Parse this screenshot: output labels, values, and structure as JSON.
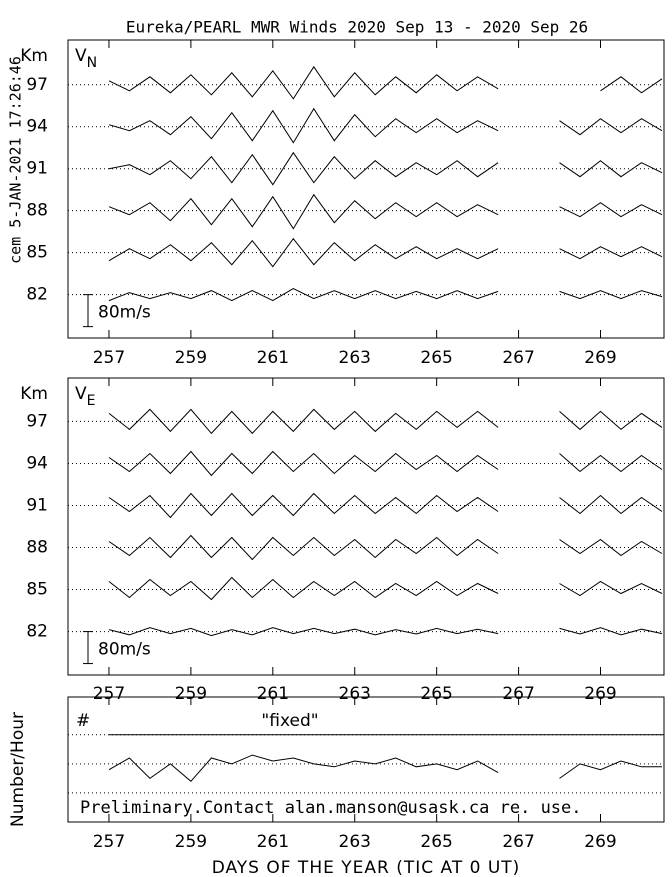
{
  "chart_data": [
    {
      "type": "line",
      "title": "Eureka/PEARL MWR Winds 2020 Sep 13 - 2020 Sep 26",
      "side_text": "cem 5-JAN-2021 17:26:46",
      "y_unit": "Km",
      "symbol": "V",
      "subscript": "N",
      "scale_bar": {
        "value": 80,
        "label": "80m/s"
      },
      "xlim": [
        256,
        270.55
      ],
      "xticks": [
        257,
        259,
        261,
        263,
        265,
        267,
        269
      ],
      "ylim": [
        78.9,
        100.2
      ],
      "yticks": [
        82,
        85,
        88,
        91,
        94,
        97
      ],
      "x": [
        257,
        257.5,
        258,
        258.5,
        259,
        259.5,
        260,
        260.5,
        261,
        261.5,
        262,
        262.5,
        263,
        263.5,
        264,
        264.5,
        265,
        265.5,
        266,
        266.5,
        267,
        267.5,
        268,
        268.5,
        269,
        269.5,
        270,
        270.5
      ],
      "series": [
        {
          "color": "#000000",
          "values": [
            -15,
            5,
            -10,
            5,
            -10,
            10,
            -15,
            10,
            -15,
            15,
            -10,
            10,
            -10,
            10,
            -10,
            8,
            -10,
            10,
            -10,
            8,
            null,
            null,
            8,
            -10,
            10,
            -10,
            10,
            -5
          ]
        },
        {
          "color": "#000000",
          "values": [
            -20,
            10,
            -15,
            20,
            -20,
            25,
            -30,
            30,
            -35,
            35,
            -30,
            25,
            -20,
            20,
            -15,
            15,
            -15,
            10,
            -15,
            10,
            null,
            null,
            10,
            -15,
            15,
            -10,
            15,
            -10
          ]
        },
        {
          "color": "#000000",
          "values": [
            10,
            -10,
            20,
            -25,
            30,
            -35,
            30,
            -40,
            35,
            -45,
            40,
            -30,
            25,
            -20,
            20,
            -15,
            20,
            -15,
            15,
            -10,
            null,
            null,
            10,
            -15,
            20,
            -15,
            15,
            -10
          ]
        },
        {
          "color": "#000000",
          "values": [
            0,
            10,
            -15,
            20,
            -25,
            30,
            -35,
            35,
            -40,
            40,
            -35,
            30,
            -25,
            20,
            -20,
            15,
            -15,
            20,
            -20,
            15,
            null,
            null,
            15,
            -20,
            20,
            -20,
            15,
            -10
          ]
        },
        {
          "color": "#000000",
          "values": [
            5,
            -10,
            15,
            -20,
            25,
            -30,
            35,
            -35,
            40,
            -40,
            45,
            -35,
            30,
            -25,
            20,
            -15,
            20,
            -15,
            15,
            -10,
            null,
            null,
            15,
            -20,
            20,
            -15,
            20,
            -10
          ]
        },
        {
          "color": "#000000",
          "values": [
            10,
            -15,
            20,
            -20,
            25,
            -25,
            30,
            -30,
            35,
            -35,
            45,
            -30,
            30,
            -25,
            20,
            -20,
            25,
            -15,
            20,
            -10,
            null,
            null,
            null,
            null,
            -15,
            20,
            -20,
            15
          ]
        }
      ]
    },
    {
      "type": "line",
      "y_unit": "Km",
      "symbol": "V",
      "subscript": "E",
      "scale_bar": {
        "value": 80,
        "label": "80m/s"
      },
      "xlim": [
        256,
        270.55
      ],
      "xticks": [
        257,
        259,
        261,
        263,
        265,
        267,
        269
      ],
      "ylim": [
        78.9,
        100.1
      ],
      "yticks": [
        82,
        85,
        88,
        91,
        94,
        97
      ],
      "x": [
        257,
        257.5,
        258,
        258.5,
        259,
        259.5,
        260,
        260.5,
        261,
        261.5,
        262,
        262.5,
        263,
        263.5,
        264,
        264.5,
        265,
        265.5,
        266,
        266.5,
        267,
        267.5,
        268,
        268.5,
        269,
        269.5,
        270,
        270.5
      ],
      "series": [
        {
          "color": "#000000",
          "values": [
            5,
            -8,
            10,
            -5,
            8,
            -10,
            5,
            -8,
            10,
            -5,
            8,
            -5,
            6,
            -8,
            5,
            -6,
            8,
            -5,
            6,
            -5,
            null,
            null,
            8,
            -6,
            10,
            -8,
            6,
            -5
          ]
        },
        {
          "color": "#000000",
          "values": [
            20,
            -20,
            25,
            -15,
            20,
            -25,
            30,
            -20,
            25,
            -20,
            20,
            -15,
            20,
            -20,
            15,
            -15,
            20,
            -15,
            15,
            -10,
            null,
            null,
            15,
            -15,
            20,
            -10,
            15,
            -10
          ]
        },
        {
          "color": "#000000",
          "values": [
            15,
            -20,
            25,
            -25,
            30,
            -25,
            25,
            -30,
            25,
            -20,
            25,
            -20,
            20,
            -25,
            20,
            -15,
            25,
            -20,
            20,
            -15,
            null,
            null,
            20,
            -15,
            20,
            -20,
            15,
            -15
          ]
        },
        {
          "color": "#000000",
          "values": [
            20,
            -15,
            25,
            -30,
            30,
            -25,
            30,
            -25,
            25,
            -25,
            30,
            -20,
            25,
            -20,
            20,
            -20,
            25,
            -15,
            20,
            -15,
            null,
            null,
            20,
            -20,
            25,
            -20,
            20,
            -15
          ]
        },
        {
          "color": "#000000",
          "values": [
            15,
            -20,
            25,
            -25,
            30,
            -30,
            25,
            -25,
            30,
            -20,
            25,
            -25,
            20,
            -20,
            25,
            -15,
            20,
            -20,
            20,
            -15,
            null,
            null,
            25,
            -20,
            20,
            -20,
            20,
            -15
          ]
        },
        {
          "color": "#000000",
          "values": [
            20,
            -20,
            30,
            -25,
            30,
            -30,
            25,
            -30,
            25,
            -25,
            30,
            -20,
            25,
            -25,
            20,
            -20,
            25,
            -15,
            25,
            -15,
            null,
            null,
            25,
            -20,
            25,
            -20,
            20,
            -15
          ]
        }
      ]
    },
    {
      "type": "line",
      "y_label": "Number/Hour",
      "symbol": "#",
      "fixed_label": "\"fixed\"",
      "fixed_level": 3,
      "note": "Preliminary.Contact alan.manson@usask.ca re. use.",
      "x_label": "DAYS OF THE YEAR (TIC AT 0 UT)",
      "xlim": [
        256,
        270.55
      ],
      "xticks": [
        257,
        259,
        261,
        263,
        265,
        267,
        269
      ],
      "ylim": [
        0,
        4.3
      ],
      "grid_levels": [
        1,
        2,
        3
      ],
      "x": [
        257,
        257.5,
        258,
        258.5,
        259,
        259.5,
        260,
        260.5,
        261,
        261.5,
        262,
        262.5,
        263,
        263.5,
        264,
        264.5,
        265,
        265.5,
        266,
        266.5,
        267,
        267.5,
        268,
        268.5,
        269,
        269.5,
        270,
        270.5
      ],
      "series": [
        {
          "color": "#000000",
          "values": [
            1.8,
            2.2,
            1.5,
            2.0,
            1.4,
            2.2,
            2.0,
            2.3,
            2.1,
            2.2,
            2.0,
            1.9,
            2.1,
            2.0,
            2.2,
            1.9,
            2.0,
            1.8,
            2.1,
            1.7,
            null,
            null,
            1.5,
            2.0,
            1.8,
            2.1,
            1.9,
            1.9
          ]
        }
      ]
    }
  ]
}
